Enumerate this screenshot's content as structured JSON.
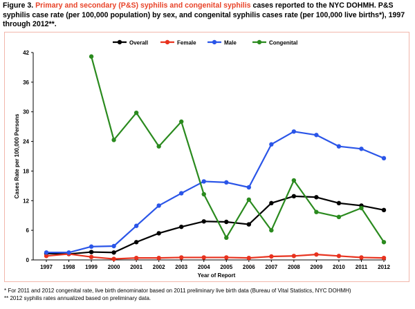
{
  "caption": {
    "fig_label": "Figure 3.",
    "highlight": "Primary and secondary (P&S) syphilis and congenital syphilis",
    "rest": "cases reported to the NYC DOHMH. P&S syphilis case rate (per 100,000 population) by sex, and congenital syphilis cases rate (per 100,000 live births*), 1997 through 2012**."
  },
  "footnotes": {
    "note1": "* For 2011 and 2012 congenital rate, live birth denominator based on 2011 preliminary live birth data (Bureau of Vital Statistics, NYC DOHMH)",
    "note2": "** 2012 syphilis rates annualized based on preliminary data."
  },
  "chart_data": {
    "type": "line",
    "title": "",
    "xlabel": "Year of Report",
    "ylabel": "Cases Rate per 100,000 Persons",
    "categories": [
      "1997",
      "1998",
      "1999",
      "2000",
      "2001",
      "2002",
      "2003",
      "2004",
      "2005",
      "2006",
      "2007",
      "2008",
      "2009",
      "2010",
      "2011",
      "2012"
    ],
    "ylim": [
      0,
      42
    ],
    "yticks": [
      0,
      6,
      12,
      18,
      24,
      30,
      36,
      42
    ],
    "grid": false,
    "legend": "top-center",
    "series": [
      {
        "name": "Overall",
        "color": "#000000",
        "values": [
          1.3,
          1.2,
          1.6,
          1.5,
          3.6,
          5.4,
          6.7,
          7.8,
          7.7,
          7.2,
          11.5,
          12.9,
          12.7,
          11.5,
          11.0,
          10.1
        ]
      },
      {
        "name": "Female",
        "color": "#e8321e",
        "values": [
          0.8,
          1.2,
          0.6,
          0.2,
          0.4,
          0.4,
          0.5,
          0.5,
          0.5,
          0.4,
          0.7,
          0.8,
          1.1,
          0.8,
          0.5,
          0.4
        ]
      },
      {
        "name": "Male",
        "color": "#2a55e8",
        "values": [
          1.5,
          1.5,
          2.7,
          2.8,
          6.9,
          11.0,
          13.5,
          15.9,
          15.7,
          14.7,
          23.4,
          26.0,
          25.3,
          23.0,
          22.5,
          20.6
        ]
      },
      {
        "name": "Congenital",
        "color": "#2a8a1e",
        "values": [
          null,
          null,
          41.2,
          24.3,
          29.8,
          23.0,
          28.0,
          13.3,
          4.5,
          12.2,
          6.0,
          16.1,
          9.7,
          8.7,
          10.5,
          3.6
        ]
      }
    ]
  }
}
